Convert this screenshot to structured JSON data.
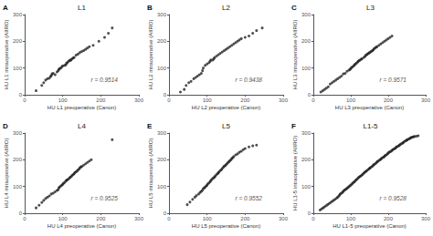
{
  "chart_data": [
    {
      "type": "scatter",
      "panel_label": "A",
      "title": "L1",
      "xlabel": "HU L1 preoperative (Canon)",
      "ylabel": "HU L1 intraoperative (AIIRO)",
      "annotation": "r = 0.9514",
      "x": [
        30,
        45,
        50,
        55,
        60,
        65,
        68,
        70,
        72,
        75,
        80,
        85,
        88,
        90,
        92,
        95,
        98,
        100,
        105,
        108,
        110,
        112,
        115,
        118,
        120,
        122,
        125,
        128,
        130,
        135,
        140,
        145,
        150,
        155,
        160,
        165,
        170,
        180,
        195,
        210,
        220,
        230
      ],
      "y": [
        15,
        35,
        45,
        55,
        60,
        62,
        68,
        72,
        78,
        80,
        75,
        85,
        90,
        95,
        98,
        100,
        105,
        108,
        110,
        112,
        118,
        120,
        125,
        128,
        130,
        130,
        135,
        138,
        140,
        148,
        152,
        158,
        162,
        165,
        170,
        175,
        180,
        185,
        200,
        215,
        230,
        250
      ],
      "xlim": [
        0,
        300
      ],
      "ylim": [
        0,
        300
      ],
      "xticks": [
        0,
        100,
        200,
        300
      ],
      "yticks": [
        0,
        100,
        200,
        300
      ],
      "color": "#222222",
      "marker": "circle",
      "grid": false
    },
    {
      "type": "scatter",
      "panel_label": "B",
      "title": "L2",
      "xlabel": "HU L2 preoperative (Canon)",
      "ylabel": "HU L2 intraoperative (AIIRO)",
      "annotation": "r = 0.9438",
      "x": [
        30,
        40,
        45,
        52,
        58,
        65,
        70,
        75,
        80,
        85,
        88,
        90,
        95,
        100,
        105,
        108,
        110,
        115,
        118,
        120,
        125,
        130,
        135,
        140,
        145,
        150,
        155,
        160,
        165,
        170,
        175,
        180,
        185,
        190,
        200,
        210,
        220,
        230,
        245
      ],
      "y": [
        10,
        20,
        35,
        45,
        50,
        60,
        65,
        70,
        75,
        80,
        90,
        100,
        110,
        115,
        120,
        125,
        130,
        130,
        135,
        140,
        145,
        150,
        155,
        160,
        165,
        170,
        175,
        180,
        185,
        190,
        195,
        200,
        205,
        210,
        215,
        220,
        230,
        240,
        250
      ],
      "xlim": [
        0,
        300
      ],
      "ylim": [
        0,
        300
      ],
      "xticks": [
        0,
        100,
        200,
        300
      ],
      "yticks": [
        0,
        100,
        200,
        300
      ],
      "color": "#222222",
      "marker": "circle",
      "grid": false
    },
    {
      "type": "scatter",
      "panel_label": "C",
      "title": "L3",
      "xlabel": "HU L3 preoperative (Canon)",
      "ylabel": "HU L3 intraoperative (AIIRO)",
      "annotation": "r = 0.9571",
      "x": [
        20,
        25,
        30,
        35,
        40,
        45,
        50,
        55,
        60,
        65,
        70,
        75,
        80,
        85,
        90,
        95,
        98,
        100,
        102,
        105,
        108,
        110,
        112,
        115,
        118,
        120,
        122,
        125,
        128,
        130,
        135,
        138,
        140,
        143,
        145,
        148,
        150,
        153,
        155,
        158,
        160,
        162,
        165,
        168,
        170,
        175,
        180,
        185,
        190,
        195,
        200,
        205,
        210
      ],
      "y": [
        10,
        15,
        20,
        25,
        30,
        40,
        45,
        50,
        55,
        60,
        65,
        70,
        78,
        80,
        88,
        92,
        95,
        98,
        102,
        105,
        108,
        112,
        115,
        118,
        122,
        125,
        128,
        130,
        133,
        135,
        140,
        143,
        148,
        150,
        153,
        155,
        158,
        160,
        163,
        165,
        168,
        172,
        175,
        178,
        180,
        185,
        190,
        195,
        200,
        205,
        210,
        215,
        220
      ],
      "xlim": [
        0,
        300
      ],
      "ylim": [
        0,
        300
      ],
      "xticks": [
        0,
        100,
        200,
        300
      ],
      "yticks": [
        0,
        100,
        200,
        300
      ],
      "color": "#222222",
      "marker": "circle",
      "grid": false
    },
    {
      "type": "scatter",
      "panel_label": "D",
      "title": "L4",
      "xlabel": "HU L4 preoperative (Canon)",
      "ylabel": "HU L4 intraoperative (AIIRO)",
      "annotation": "r = 0.9525",
      "x": [
        30,
        38,
        45,
        50,
        55,
        60,
        65,
        70,
        75,
        80,
        85,
        88,
        90,
        92,
        95,
        98,
        100,
        102,
        105,
        108,
        110,
        112,
        115,
        118,
        120,
        123,
        125,
        128,
        130,
        132,
        135,
        138,
        140,
        143,
        145,
        148,
        150,
        155,
        160,
        165,
        170,
        175,
        230
      ],
      "y": [
        20,
        30,
        40,
        48,
        55,
        60,
        65,
        72,
        75,
        80,
        85,
        88,
        95,
        98,
        102,
        105,
        108,
        112,
        115,
        120,
        123,
        125,
        128,
        132,
        135,
        138,
        142,
        145,
        148,
        152,
        155,
        158,
        162,
        165,
        170,
        173,
        175,
        180,
        185,
        190,
        195,
        200,
        275
      ],
      "xlim": [
        0,
        300
      ],
      "ylim": [
        0,
        300
      ],
      "xticks": [
        0,
        100,
        200,
        300
      ],
      "yticks": [
        0,
        100,
        200,
        300
      ],
      "color": "#222222",
      "marker": "circle",
      "grid": false
    },
    {
      "type": "scatter",
      "panel_label": "E",
      "title": "L5",
      "xlabel": "HU L5 preoperative (Canon)",
      "ylabel": "HU L5 intraoperative (AIIRO)",
      "annotation": "r = 0.9552",
      "x": [
        48,
        55,
        62,
        68,
        72,
        78,
        82,
        85,
        88,
        90,
        93,
        95,
        98,
        100,
        102,
        105,
        108,
        110,
        112,
        115,
        118,
        120,
        122,
        125,
        128,
        130,
        132,
        135,
        138,
        140,
        143,
        145,
        148,
        150,
        153,
        155,
        158,
        160,
        163,
        165,
        168,
        170,
        175,
        180,
        185,
        190,
        195,
        200,
        210,
        220,
        230
      ],
      "y": [
        32,
        42,
        52,
        60,
        66,
        72,
        78,
        82,
        86,
        92,
        95,
        98,
        102,
        105,
        110,
        113,
        118,
        122,
        126,
        130,
        133,
        136,
        140,
        145,
        148,
        152,
        155,
        160,
        163,
        168,
        172,
        176,
        178,
        182,
        186,
        190,
        193,
        197,
        200,
        205,
        208,
        212,
        218,
        222,
        228,
        232,
        238,
        242,
        248,
        252,
        255
      ],
      "xlim": [
        0,
        300
      ],
      "ylim": [
        0,
        300
      ],
      "xticks": [
        0,
        100,
        200,
        300
      ],
      "yticks": [
        0,
        100,
        200,
        300
      ],
      "color": "#222222",
      "marker": "circle",
      "grid": false
    },
    {
      "type": "scatter",
      "panel_label": "F",
      "title": "L1-5",
      "xlabel": "HU L1-5 preoperative (Canon)",
      "ylabel": "HU L1-5 intraoperative (AIIRO)",
      "annotation": "r = 0.9528",
      "x": [
        18,
        22,
        26,
        30,
        34,
        38,
        42,
        46,
        50,
        54,
        58,
        62,
        65,
        68,
        70,
        72,
        75,
        78,
        80,
        82,
        85,
        87,
        90,
        92,
        95,
        97,
        100,
        102,
        105,
        107,
        110,
        112,
        115,
        117,
        120,
        122,
        125,
        127,
        130,
        132,
        135,
        137,
        140,
        142,
        145,
        148,
        150,
        152,
        155,
        158,
        160,
        162,
        165,
        168,
        170,
        172,
        175,
        178,
        180,
        182,
        185,
        188,
        190,
        192,
        195,
        198,
        200,
        202,
        205,
        208,
        210,
        212,
        215,
        218,
        220,
        222,
        225,
        228,
        230,
        232,
        235,
        238,
        240,
        242,
        245,
        248,
        250,
        252,
        255,
        258,
        260,
        262,
        265,
        268,
        270,
        275,
        280
      ],
      "y": [
        12,
        16,
        20,
        24,
        28,
        32,
        36,
        40,
        44,
        48,
        52,
        56,
        60,
        64,
        68,
        72,
        75,
        78,
        82,
        85,
        88,
        90,
        93,
        96,
        99,
        102,
        105,
        108,
        112,
        115,
        118,
        122,
        125,
        128,
        132,
        135,
        138,
        140,
        143,
        146,
        150,
        153,
        156,
        158,
        162,
        165,
        168,
        170,
        173,
        176,
        180,
        182,
        185,
        188,
        192,
        194,
        197,
        200,
        202,
        205,
        208,
        210,
        213,
        216,
        218,
        222,
        225,
        228,
        230,
        232,
        235,
        238,
        240,
        242,
        245,
        248,
        250,
        252,
        255,
        257,
        260,
        262,
        264,
        267,
        270,
        272,
        274,
        276,
        278,
        280,
        282,
        284,
        285,
        286,
        287,
        288,
        290
      ],
      "xlim": [
        0,
        300
      ],
      "ylim": [
        0,
        300
      ],
      "xticks": [
        0,
        100,
        200,
        300
      ],
      "yticks": [
        0,
        100,
        200,
        300
      ],
      "color": "#222222",
      "marker": "circle",
      "grid": false
    }
  ]
}
